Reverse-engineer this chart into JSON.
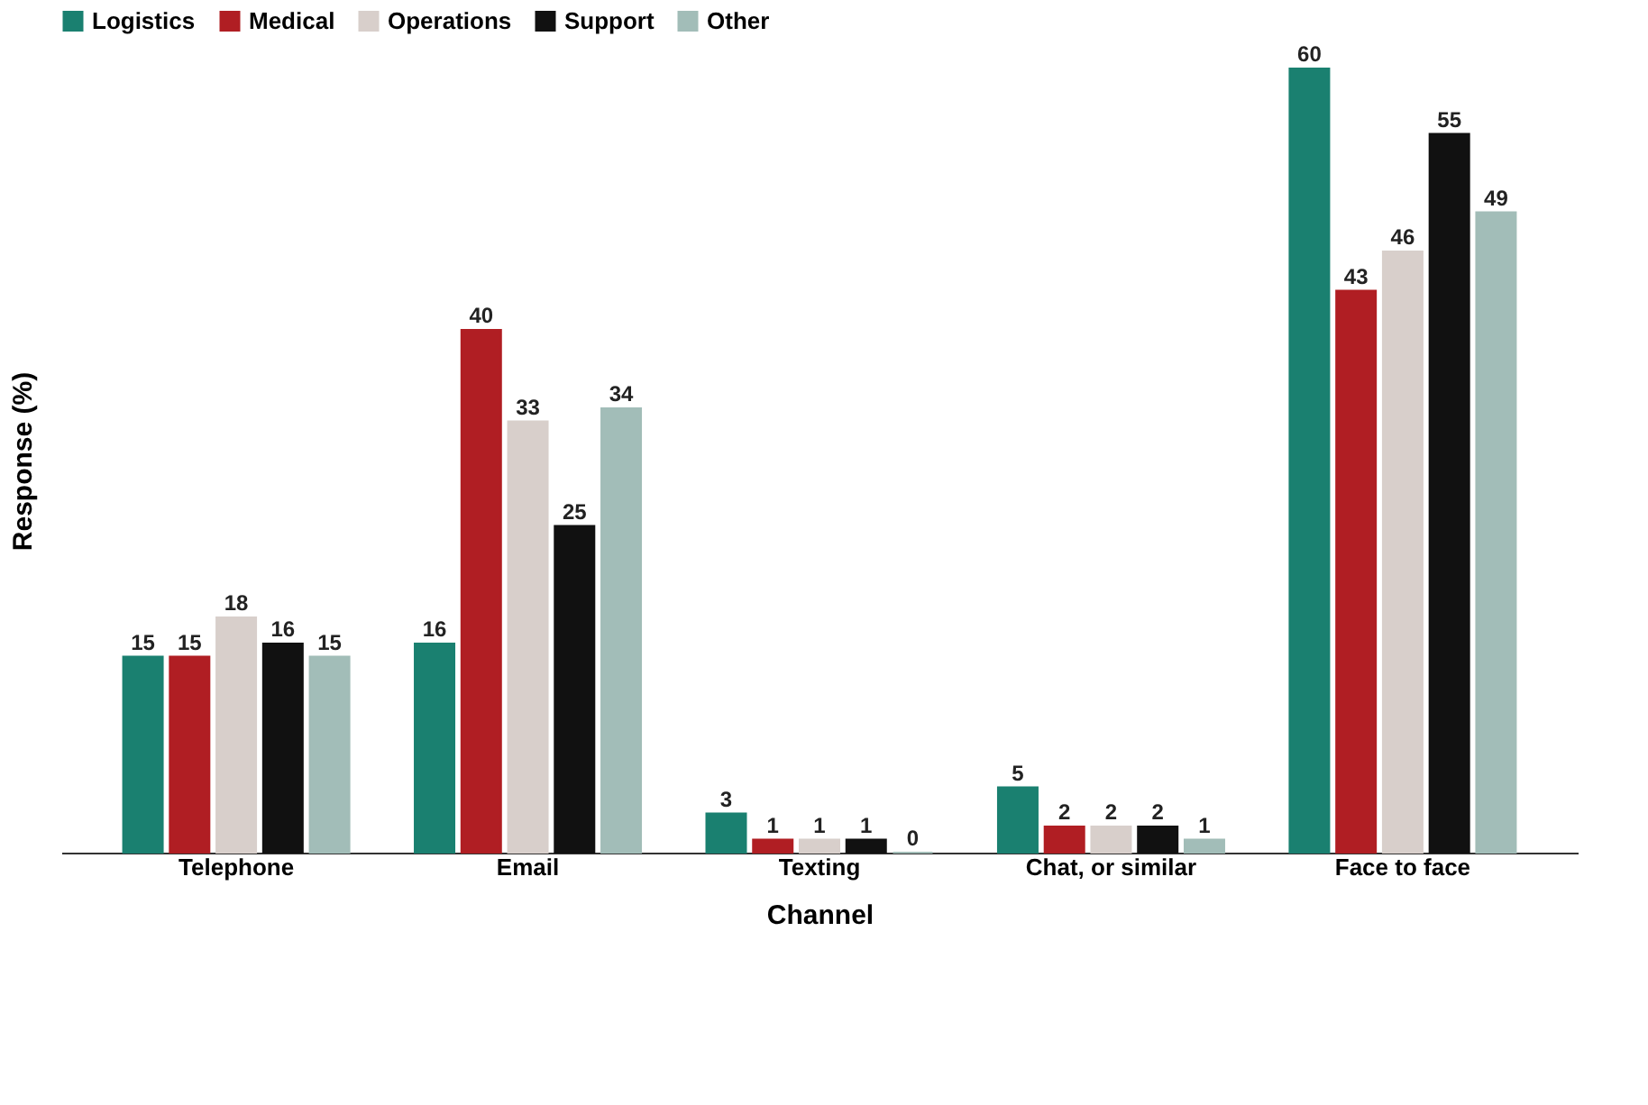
{
  "chart_data": {
    "type": "bar",
    "xlabel": "Channel",
    "ylabel": "Response (%)",
    "categories": [
      "Telephone",
      "Email",
      "Texting",
      "Chat, or similar",
      "Face to face"
    ],
    "series": [
      {
        "name": "Logistics",
        "color": "#1a8070",
        "values": [
          15,
          16,
          3,
          5,
          60
        ]
      },
      {
        "name": "Medical",
        "color": "#b01e23",
        "values": [
          15,
          40,
          1,
          2,
          43
        ]
      },
      {
        "name": "Operations",
        "color": "#d8cfcb",
        "values": [
          18,
          33,
          1,
          2,
          46
        ]
      },
      {
        "name": "Support",
        "color": "#111111",
        "values": [
          16,
          25,
          1,
          2,
          55
        ]
      },
      {
        "name": "Other",
        "color": "#a2bdb8",
        "values": [
          15,
          34,
          0,
          1,
          49
        ]
      }
    ],
    "data_labels": true,
    "legend": "top",
    "tick_labels": "x"
  }
}
